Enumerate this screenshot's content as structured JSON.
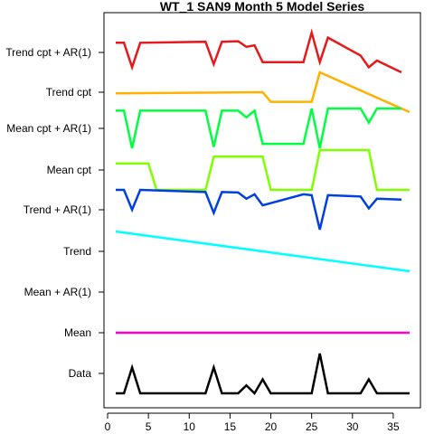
{
  "chart_data": {
    "type": "line",
    "title": "WT_1 SAN9 Month 5 Model Series",
    "xlim": [
      1,
      37
    ],
    "x_ticks": [
      0,
      5,
      10,
      15,
      20,
      25,
      30,
      35
    ],
    "grid": false,
    "legend": "none",
    "series": [
      {
        "name": "Trend cpt + AR(1)",
        "color": "#e41a1c",
        "points": [
          [
            1,
            0.8
          ],
          [
            2,
            0.8
          ],
          [
            3,
            0.32
          ],
          [
            4,
            0.8
          ],
          [
            12,
            0.82
          ],
          [
            13,
            0.38
          ],
          [
            14,
            0.82
          ],
          [
            16,
            0.83
          ],
          [
            17,
            0.72
          ],
          [
            18,
            0.75
          ],
          [
            19,
            0.42
          ],
          [
            24,
            0.42
          ],
          [
            25,
            1.0
          ],
          [
            26,
            0.42
          ],
          [
            27,
            0.9
          ],
          [
            31,
            0.55
          ],
          [
            32,
            0.32
          ],
          [
            33,
            0.45
          ],
          [
            36,
            0.22
          ]
        ]
      },
      {
        "name": "Trend cpt",
        "color": "#ffb000",
        "points": [
          [
            1,
            0.47
          ],
          [
            19,
            0.5
          ],
          [
            20,
            0.26
          ],
          [
            25,
            0.26
          ],
          [
            26,
            1.0
          ],
          [
            37,
            0.0
          ]
        ]
      },
      {
        "name": "Mean cpt + AR(1)",
        "color": "#00ff40",
        "points": [
          [
            1,
            0.85
          ],
          [
            2,
            0.85
          ],
          [
            3,
            0.0
          ],
          [
            4,
            0.85
          ],
          [
            12,
            0.85
          ],
          [
            13,
            0.03
          ],
          [
            14,
            0.85
          ],
          [
            16,
            0.85
          ],
          [
            17,
            0.7
          ],
          [
            18,
            0.85
          ],
          [
            19,
            0.1
          ],
          [
            24,
            0.1
          ],
          [
            25,
            0.9
          ],
          [
            26,
            0.0
          ],
          [
            27,
            0.9
          ],
          [
            31,
            0.9
          ],
          [
            32,
            0.58
          ],
          [
            33,
            0.9
          ],
          [
            36,
            0.9
          ]
        ]
      },
      {
        "name": "Mean cpt",
        "color": "#80ff00",
        "points": [
          [
            1,
            1.0
          ],
          [
            5,
            1.0
          ],
          [
            6,
            0.0
          ],
          [
            12,
            0.0
          ],
          [
            13,
            1.25
          ],
          [
            19,
            1.25
          ],
          [
            20,
            0.0
          ],
          [
            25,
            0.0
          ],
          [
            26,
            1.5
          ],
          [
            32,
            1.5
          ],
          [
            33,
            0.0
          ],
          [
            37,
            0.0
          ]
        ]
      },
      {
        "name": "Trend + AR(1)",
        "color": "#0040e0",
        "points": [
          [
            1,
            0.9
          ],
          [
            2,
            0.9
          ],
          [
            3,
            0.45
          ],
          [
            4,
            0.9
          ],
          [
            12,
            0.85
          ],
          [
            13,
            0.38
          ],
          [
            14,
            0.85
          ],
          [
            16,
            0.84
          ],
          [
            17,
            0.7
          ],
          [
            18,
            0.8
          ],
          [
            19,
            0.55
          ],
          [
            24,
            0.8
          ],
          [
            25,
            0.78
          ],
          [
            26,
            0.0
          ],
          [
            27,
            0.78
          ],
          [
            31,
            0.75
          ],
          [
            32,
            0.48
          ],
          [
            33,
            0.7
          ],
          [
            36,
            0.68
          ]
        ]
      },
      {
        "name": "Trend",
        "color": "#00ffff",
        "points": [
          [
            1,
            1.0
          ],
          [
            37,
            0.0
          ]
        ]
      },
      {
        "name": "Mean + AR(1)",
        "color": "#0000ff",
        "points": []
      },
      {
        "name": "Mean",
        "color": "#ff00cc",
        "points": [
          [
            1,
            0.5
          ],
          [
            37,
            0.5
          ]
        ]
      },
      {
        "name": "Data",
        "color": "#000000",
        "points": [
          [
            1,
            0.0
          ],
          [
            2,
            0.0
          ],
          [
            3,
            0.65
          ],
          [
            4,
            0.0
          ],
          [
            12,
            0.0
          ],
          [
            13,
            0.65
          ],
          [
            14,
            0.0
          ],
          [
            16,
            0.0
          ],
          [
            17,
            0.2
          ],
          [
            18,
            0.0
          ],
          [
            19,
            0.35
          ],
          [
            20,
            0.0
          ],
          [
            25,
            0.0
          ],
          [
            26,
            1.0
          ],
          [
            27,
            0.0
          ],
          [
            31,
            0.0
          ],
          [
            32,
            0.35
          ],
          [
            33,
            0.0
          ],
          [
            37,
            0.0
          ]
        ]
      }
    ]
  }
}
